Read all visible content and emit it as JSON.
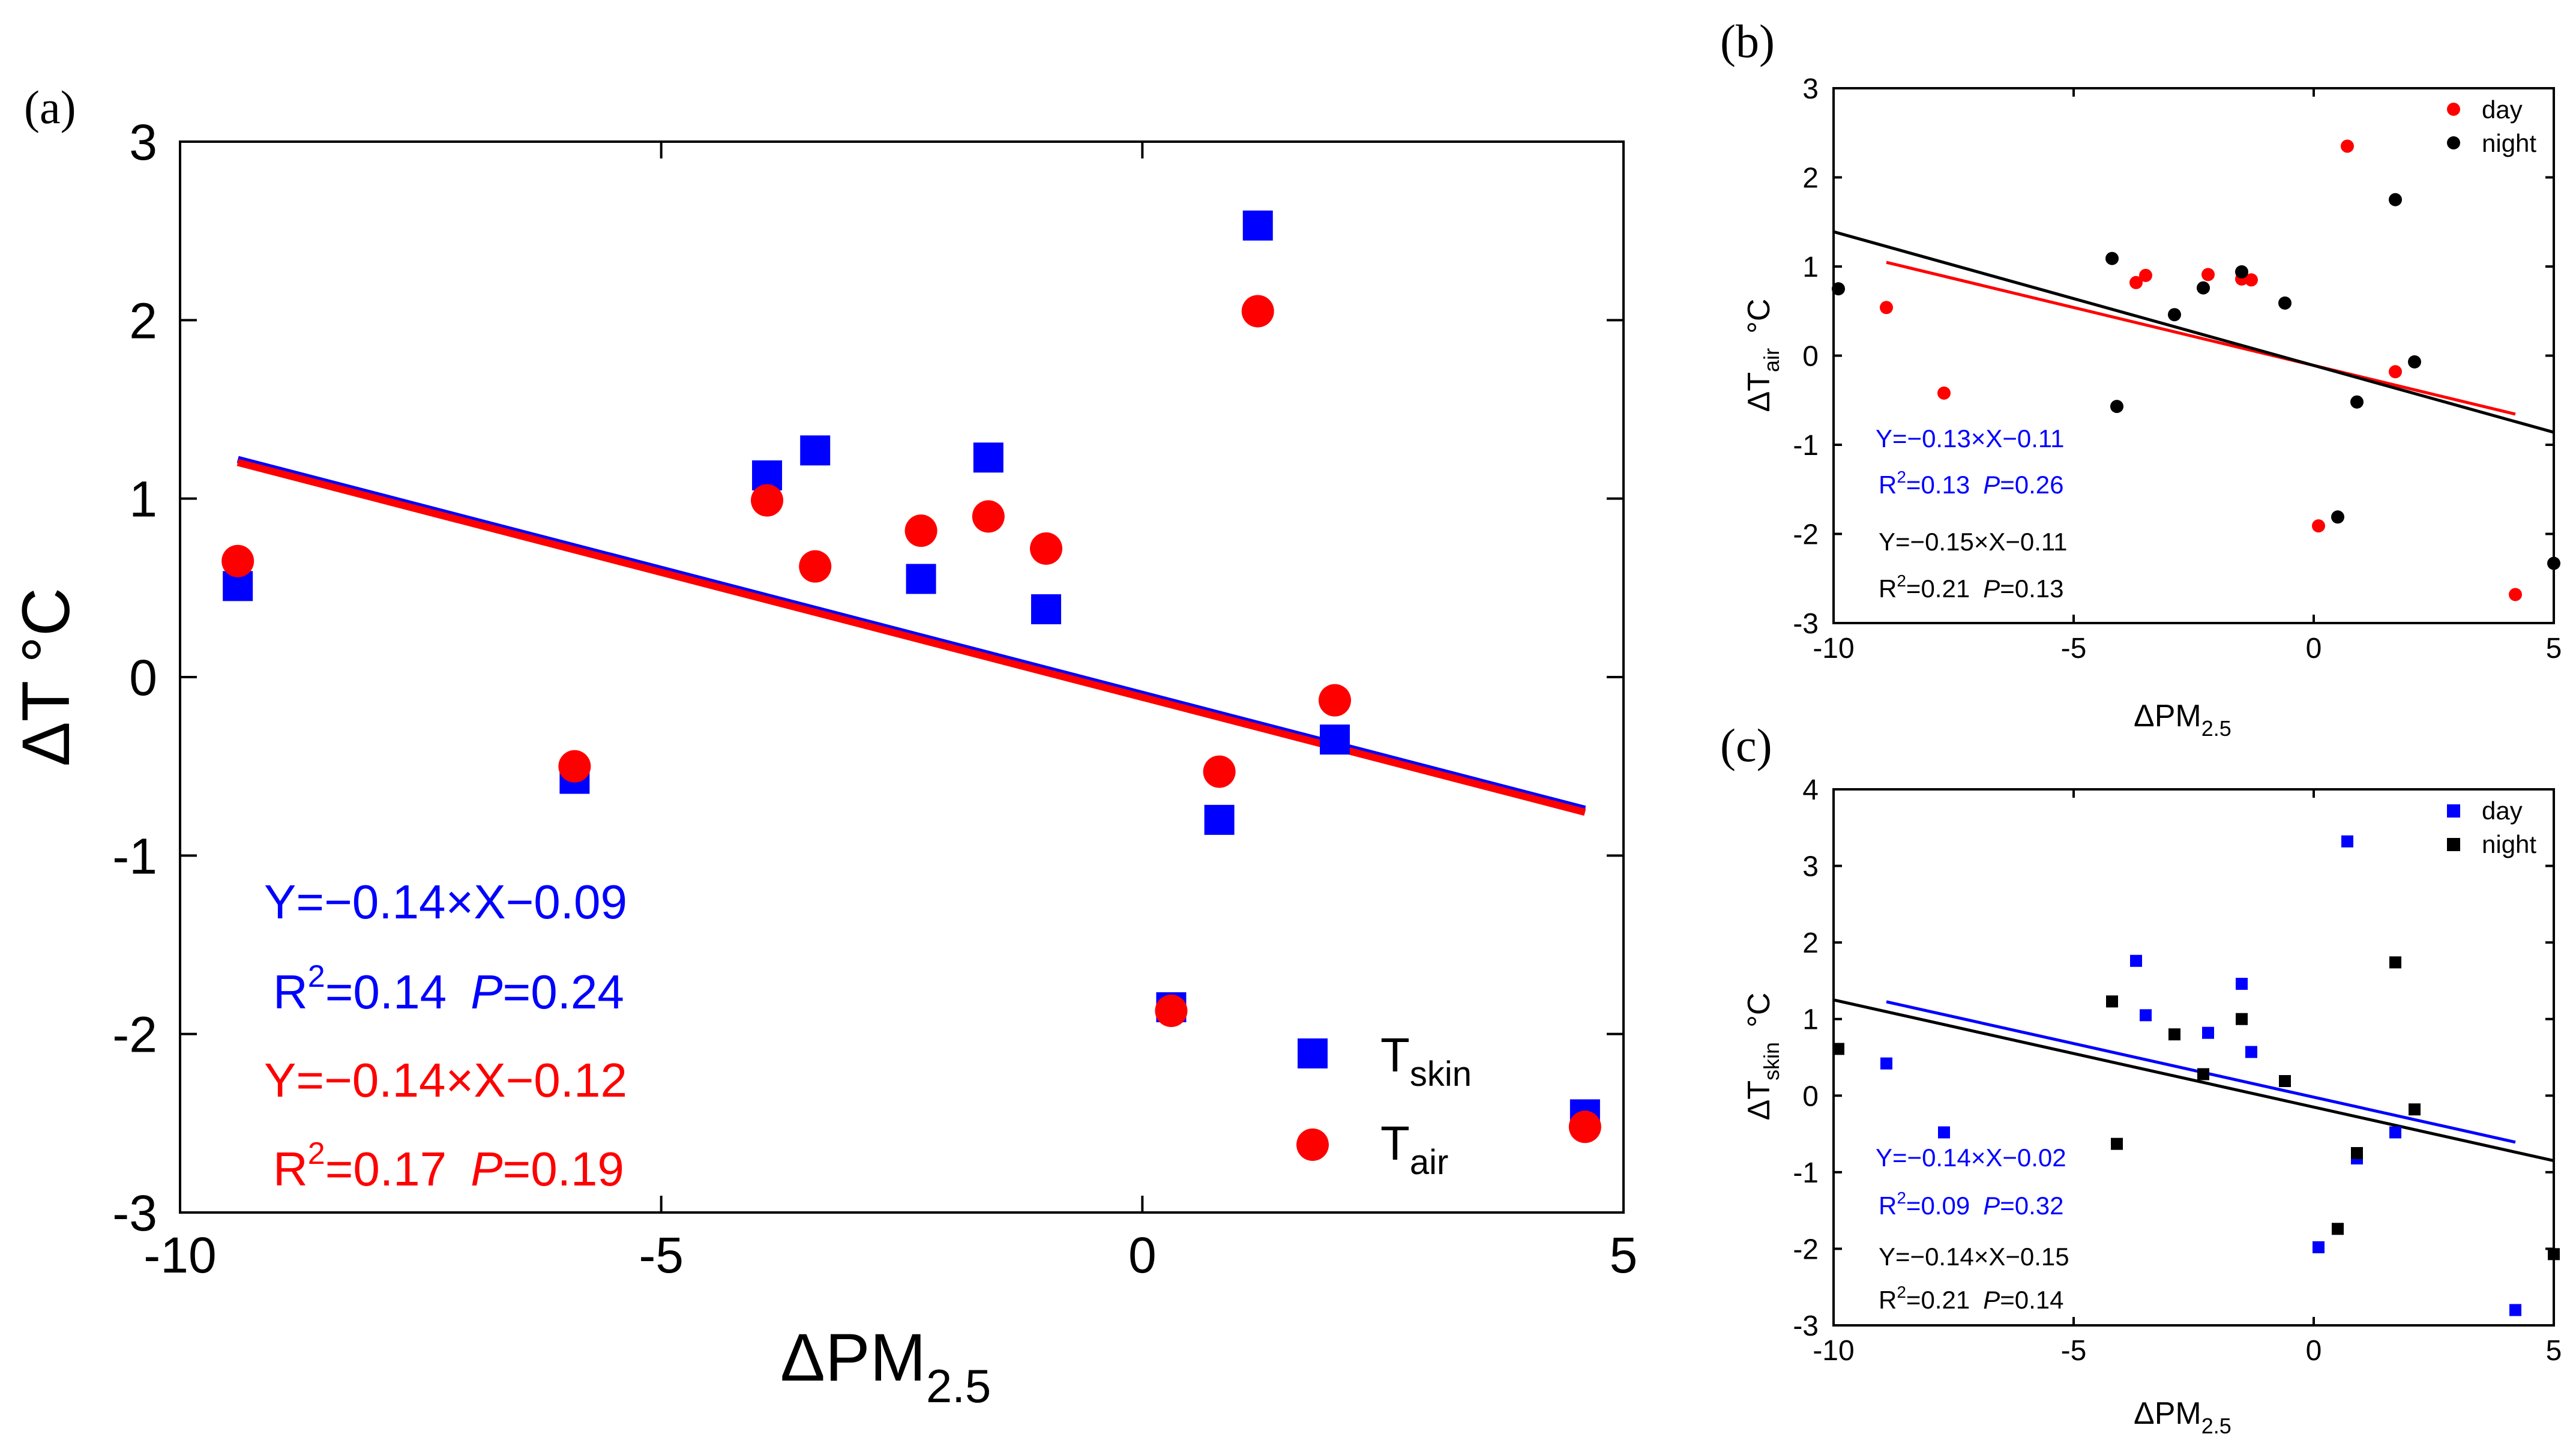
{
  "chart_data": [
    {
      "id": "a",
      "panel_label": "(a)",
      "type": "scatter",
      "xlabel": "ΔPM",
      "xlabel_sub": "2.5",
      "ylabel": "ΔT °C",
      "xlim": [
        -10,
        5
      ],
      "ylim": [
        -3,
        3
      ],
      "xticks": [
        -10,
        -5,
        0,
        5
      ],
      "yticks": [
        -3,
        -2,
        -1,
        0,
        1,
        2,
        3
      ],
      "legend_position": "bottom-right",
      "series": [
        {
          "name": "T",
          "name_sub": "skin",
          "marker": "square",
          "color": "#0000ff",
          "points": [
            [
              -9.4,
              0.51
            ],
            [
              -5.9,
              -0.57
            ],
            [
              -3.9,
              1.13
            ],
            [
              -3.4,
              1.27
            ],
            [
              -2.3,
              0.55
            ],
            [
              -1.6,
              1.23
            ],
            [
              -1.0,
              0.38
            ],
            [
              0.3,
              -1.85
            ],
            [
              0.8,
              -0.8
            ],
            [
              1.2,
              2.53
            ],
            [
              2.0,
              -0.35
            ],
            [
              4.6,
              -2.45
            ]
          ],
          "fit": {
            "slope": -0.14,
            "intercept": -0.09,
            "x_range": [
              -9.4,
              4.6
            ]
          },
          "equation": "Y=−0.14×X−0.09",
          "r2_label": "R",
          "r2_value": "=0.14",
          "p_label": "P",
          "p_value": "=0.24"
        },
        {
          "name": "T",
          "name_sub": "air",
          "marker": "circle",
          "color": "#ff0000",
          "points": [
            [
              -9.4,
              0.65
            ],
            [
              -5.9,
              -0.5
            ],
            [
              -3.9,
              0.99
            ],
            [
              -3.4,
              0.62
            ],
            [
              -2.3,
              0.82
            ],
            [
              -1.6,
              0.9
            ],
            [
              -1.0,
              0.72
            ],
            [
              0.3,
              -1.87
            ],
            [
              0.8,
              -0.53
            ],
            [
              1.2,
              2.05
            ],
            [
              2.0,
              -0.13
            ],
            [
              4.6,
              -2.52
            ]
          ],
          "fit": {
            "slope": -0.14,
            "intercept": -0.12,
            "x_range": [
              -9.4,
              4.6
            ]
          },
          "equation": "Y=−0.14×X−0.12",
          "r2_label": "R",
          "r2_value": "=0.17",
          "p_label": "P",
          "p_value": "=0.19"
        }
      ]
    },
    {
      "id": "b",
      "panel_label": "(b)",
      "type": "scatter",
      "xlabel": "ΔPM",
      "xlabel_sub": "2.5",
      "ylabel": "ΔT",
      "ylabel_sub": "air",
      "ylabel_unit": "°C",
      "xlim": [
        -10,
        5
      ],
      "ylim": [
        -3,
        3
      ],
      "xticks": [
        -10,
        -5,
        0,
        5
      ],
      "yticks": [
        -3,
        -2,
        -1,
        0,
        1,
        2,
        3
      ],
      "legend_position": "top-right",
      "series": [
        {
          "name": "day",
          "marker": "circle",
          "color": "#ff0000",
          "points": [
            [
              -8.9,
              0.54
            ],
            [
              -7.7,
              -0.42
            ],
            [
              -3.7,
              0.82
            ],
            [
              -3.5,
              0.9
            ],
            [
              -2.2,
              0.91
            ],
            [
              -1.5,
              0.86
            ],
            [
              -1.3,
              0.85
            ],
            [
              0.1,
              -1.91
            ],
            [
              0.7,
              2.35
            ],
            [
              1.7,
              -0.18
            ],
            [
              4.2,
              -2.68
            ]
          ],
          "fit": {
            "slope": -0.13,
            "intercept": -0.11,
            "x_range": [
              -8.9,
              4.2
            ]
          },
          "equation": "Y=−0.13×X−0.11",
          "r2_label": "R",
          "r2_value": "=0.13",
          "p_label": "P",
          "p_value": "=0.26"
        },
        {
          "name": "night",
          "marker": "circle",
          "color": "#000000",
          "points": [
            [
              -9.9,
              0.75
            ],
            [
              -4.2,
              1.09
            ],
            [
              -4.1,
              -0.57
            ],
            [
              -2.9,
              0.46
            ],
            [
              -2.3,
              0.76
            ],
            [
              -1.5,
              0.94
            ],
            [
              -0.6,
              0.59
            ],
            [
              0.5,
              -1.81
            ],
            [
              0.9,
              -0.52
            ],
            [
              1.7,
              1.75
            ],
            [
              2.1,
              -0.07
            ],
            [
              5.0,
              -2.33
            ]
          ],
          "fit": {
            "slope": -0.15,
            "intercept": -0.11,
            "x_range": [
              -10,
              5
            ]
          },
          "equation": "Y=−0.15×X−0.11",
          "r2_label": "R",
          "r2_value": "=0.21",
          "p_label": "P",
          "p_value": "=0.13"
        }
      ]
    },
    {
      "id": "c",
      "panel_label": "(c)",
      "type": "scatter",
      "xlabel": "ΔPM",
      "xlabel_sub": "2.5",
      "ylabel": "ΔT",
      "ylabel_sub": "skin",
      "ylabel_unit": "°C",
      "xlim": [
        -10,
        5
      ],
      "ylim": [
        -3,
        4
      ],
      "xticks": [
        -10,
        -5,
        0,
        5
      ],
      "yticks": [
        -3,
        -2,
        -1,
        0,
        1,
        2,
        3,
        4
      ],
      "legend_position": "top-right",
      "series": [
        {
          "name": "day",
          "marker": "square",
          "color": "#0000ff",
          "points": [
            [
              -8.9,
              0.42
            ],
            [
              -7.7,
              -0.48
            ],
            [
              -3.7,
              1.76
            ],
            [
              -3.5,
              1.05
            ],
            [
              -2.2,
              0.82
            ],
            [
              -1.5,
              1.46
            ],
            [
              -1.3,
              0.57
            ],
            [
              0.1,
              -1.98
            ],
            [
              0.7,
              3.32
            ],
            [
              0.9,
              -0.82
            ],
            [
              1.7,
              -0.48
            ],
            [
              4.2,
              -2.8
            ]
          ],
          "fit": {
            "slope": -0.14,
            "intercept": -0.02,
            "x_range": [
              -8.9,
              4.2
            ]
          },
          "equation": "Y=−0.14×X−0.02",
          "r2_label": "R",
          "r2_value": "=0.09",
          "p_label": "P",
          "p_value": "=0.32"
        },
        {
          "name": "night",
          "marker": "square",
          "color": "#000000",
          "points": [
            [
              -9.9,
              0.61
            ],
            [
              -4.2,
              1.23
            ],
            [
              -4.1,
              -0.63
            ],
            [
              -2.9,
              0.8
            ],
            [
              -2.3,
              0.28
            ],
            [
              -1.5,
              1.0
            ],
            [
              -0.6,
              0.19
            ],
            [
              0.5,
              -1.74
            ],
            [
              0.9,
              -0.75
            ],
            [
              1.7,
              1.74
            ],
            [
              2.1,
              -0.18
            ],
            [
              5.0,
              -2.07
            ]
          ],
          "fit": {
            "slope": -0.14,
            "intercept": -0.15,
            "x_range": [
              -10,
              5
            ]
          },
          "equation": "Y=−0.14×X−0.15",
          "r2_label": "R",
          "r2_value": "=0.21",
          "p_label": "P",
          "p_value": "=0.14"
        }
      ]
    }
  ]
}
